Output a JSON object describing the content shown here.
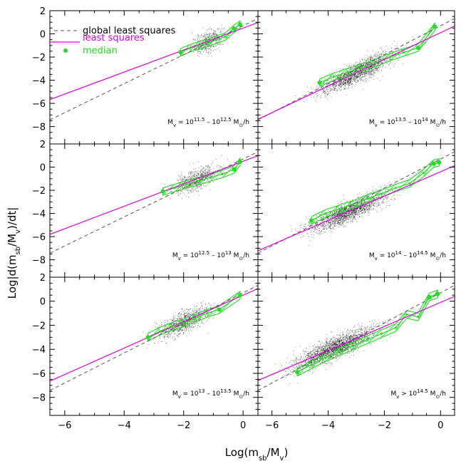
{
  "chart_data": {
    "type": "scatter",
    "xlabel": "Log(m_sb/M_v)",
    "ylabel": "Log|d(m_sb/M_v)/dt|",
    "xlim": [
      -6.5,
      0.5
    ],
    "ylim": [
      -9.5,
      2
    ],
    "x_ticks": [
      -6,
      -4,
      -2,
      0
    ],
    "y_ticks": [
      -8,
      -6,
      -4,
      -2,
      0,
      2
    ],
    "layout": {
      "rows": 3,
      "cols": 2
    },
    "colors": {
      "global_least_squares": "#555555",
      "least_squares": "#e000e0",
      "median": "#22dd22",
      "points": "#000000"
    },
    "legend": {
      "position": "top-left",
      "entries": [
        {
          "label": "global least squares",
          "style": "dashed",
          "color": "#555555"
        },
        {
          "label": "least squares",
          "style": "solid",
          "color": "#e000e0"
        },
        {
          "label": "median",
          "style": "marker",
          "color": "#22dd22"
        }
      ]
    },
    "global_least_squares": {
      "slope": 1.25,
      "intercept": 0.7
    },
    "panels": [
      {
        "label": {
          "pre": "M",
          "sub": "v",
          "mid1": " = 10",
          "sup1": "11.5",
          "mid2": " – 10",
          "sup2": "12.5",
          "mid3": " M",
          "sub2": "⊙",
          "post": "/h"
        },
        "least_squares": {
          "slope": 0.95,
          "intercept": 0.5
        },
        "median": {
          "x": [
            -2.1,
            -1.8,
            -1.5,
            -1.2,
            -0.9,
            -0.6,
            -0.3,
            -0.1
          ],
          "y": [
            -1.6,
            -1.25,
            -1.0,
            -0.8,
            -0.5,
            -0.25,
            0.45,
            0.8
          ]
        },
        "scatter": {
          "x_center": -1.2,
          "x_spread": 0.5,
          "density": 500
        }
      },
      {
        "label": {
          "pre": "M",
          "sub": "v",
          "mid1": " = 10",
          "sup1": "13.5",
          "mid2": " – 10",
          "sup2": "14",
          "mid3": " M",
          "sub2": "⊙",
          "post": "/h"
        },
        "least_squares": {
          "slope": 1.15,
          "intercept": 0.1
        },
        "median": {
          "x": [
            -4.3,
            -3.8,
            -3.3,
            -2.8,
            -2.3,
            -1.8,
            -1.3,
            -0.8,
            -0.2
          ],
          "y": [
            -4.2,
            -3.7,
            -3.3,
            -2.9,
            -2.5,
            -2.0,
            -1.6,
            -1.2,
            0.6
          ]
        },
        "scatter": {
          "x_center": -3.0,
          "x_spread": 1.2,
          "density": 1700
        }
      },
      {
        "label": {
          "pre": "M",
          "sub": "v",
          "mid1": " = 10",
          "sup1": "12.5",
          "mid2": " – 10",
          "sup2": "13",
          "mid3": " M",
          "sub2": "⊙",
          "post": "/h"
        },
        "least_squares": {
          "slope": 0.97,
          "intercept": 0.5
        },
        "median": {
          "x": [
            -2.7,
            -2.3,
            -1.9,
            -1.5,
            -1.1,
            -0.7,
            -0.3,
            -0.1
          ],
          "y": [
            -2.1,
            -1.8,
            -1.5,
            -1.2,
            -0.9,
            -0.6,
            -0.2,
            0.45
          ]
        },
        "scatter": {
          "x_center": -1.6,
          "x_spread": 0.7,
          "density": 700
        }
      },
      {
        "label": {
          "pre": "M",
          "sub": "v",
          "mid1": " = 10",
          "sup1": "14",
          "mid2": " – 10",
          "sup2": "14.5",
          "mid3": " M",
          "sub2": "⊙",
          "post": "/h"
        },
        "least_squares": {
          "slope": 1.05,
          "intercept": -0.4
        },
        "median": {
          "x": [
            -4.6,
            -4.1,
            -3.6,
            -3.1,
            -2.6,
            -2.1,
            -1.6,
            -1.1,
            -0.6,
            -0.25,
            -0.05
          ],
          "y": [
            -4.6,
            -4.0,
            -3.6,
            -3.2,
            -2.7,
            -2.3,
            -1.8,
            -1.4,
            -0.5,
            0.3,
            0.4
          ]
        },
        "scatter": {
          "x_center": -3.3,
          "x_spread": 1.3,
          "density": 1800
        }
      },
      {
        "label": {
          "pre": "M",
          "sub": "v",
          "mid1": " = 10",
          "sup1": "13",
          "mid2": " – 10",
          "sup2": "13.5",
          "mid3": " M",
          "sub2": "⊙",
          "post": "/h"
        },
        "least_squares": {
          "slope": 1.1,
          "intercept": 0.5
        },
        "median": {
          "x": [
            -3.2,
            -2.8,
            -2.4,
            -2.0,
            -1.6,
            -1.2,
            -0.8,
            -0.1
          ],
          "y": [
            -3.0,
            -2.5,
            -2.1,
            -1.8,
            -1.4,
            -1.0,
            -0.7,
            0.5
          ]
        },
        "scatter": {
          "x_center": -2.0,
          "x_spread": 0.8,
          "density": 900
        }
      },
      {
        "label": {
          "pre": "M",
          "sub": "v",
          "mid1": " > 10",
          "sup1": "14.5",
          "mid2": "",
          "sup2": "",
          "mid3": " M",
          "sub2": "⊙",
          "post": "/h"
        },
        "least_squares": {
          "slope": 1.0,
          "intercept": -0.1
        },
        "median": {
          "x": [
            -5.1,
            -4.6,
            -4.1,
            -3.6,
            -3.1,
            -2.6,
            -2.1,
            -1.6,
            -1.2,
            -0.8,
            -0.4,
            -0.1
          ],
          "y": [
            -5.9,
            -5.3,
            -4.7,
            -4.2,
            -3.7,
            -3.2,
            -2.7,
            -2.2,
            -1.1,
            -1.3,
            0.35,
            0.6
          ]
        },
        "scatter": {
          "x_center": -3.8,
          "x_spread": 1.3,
          "density": 2200
        }
      }
    ]
  }
}
